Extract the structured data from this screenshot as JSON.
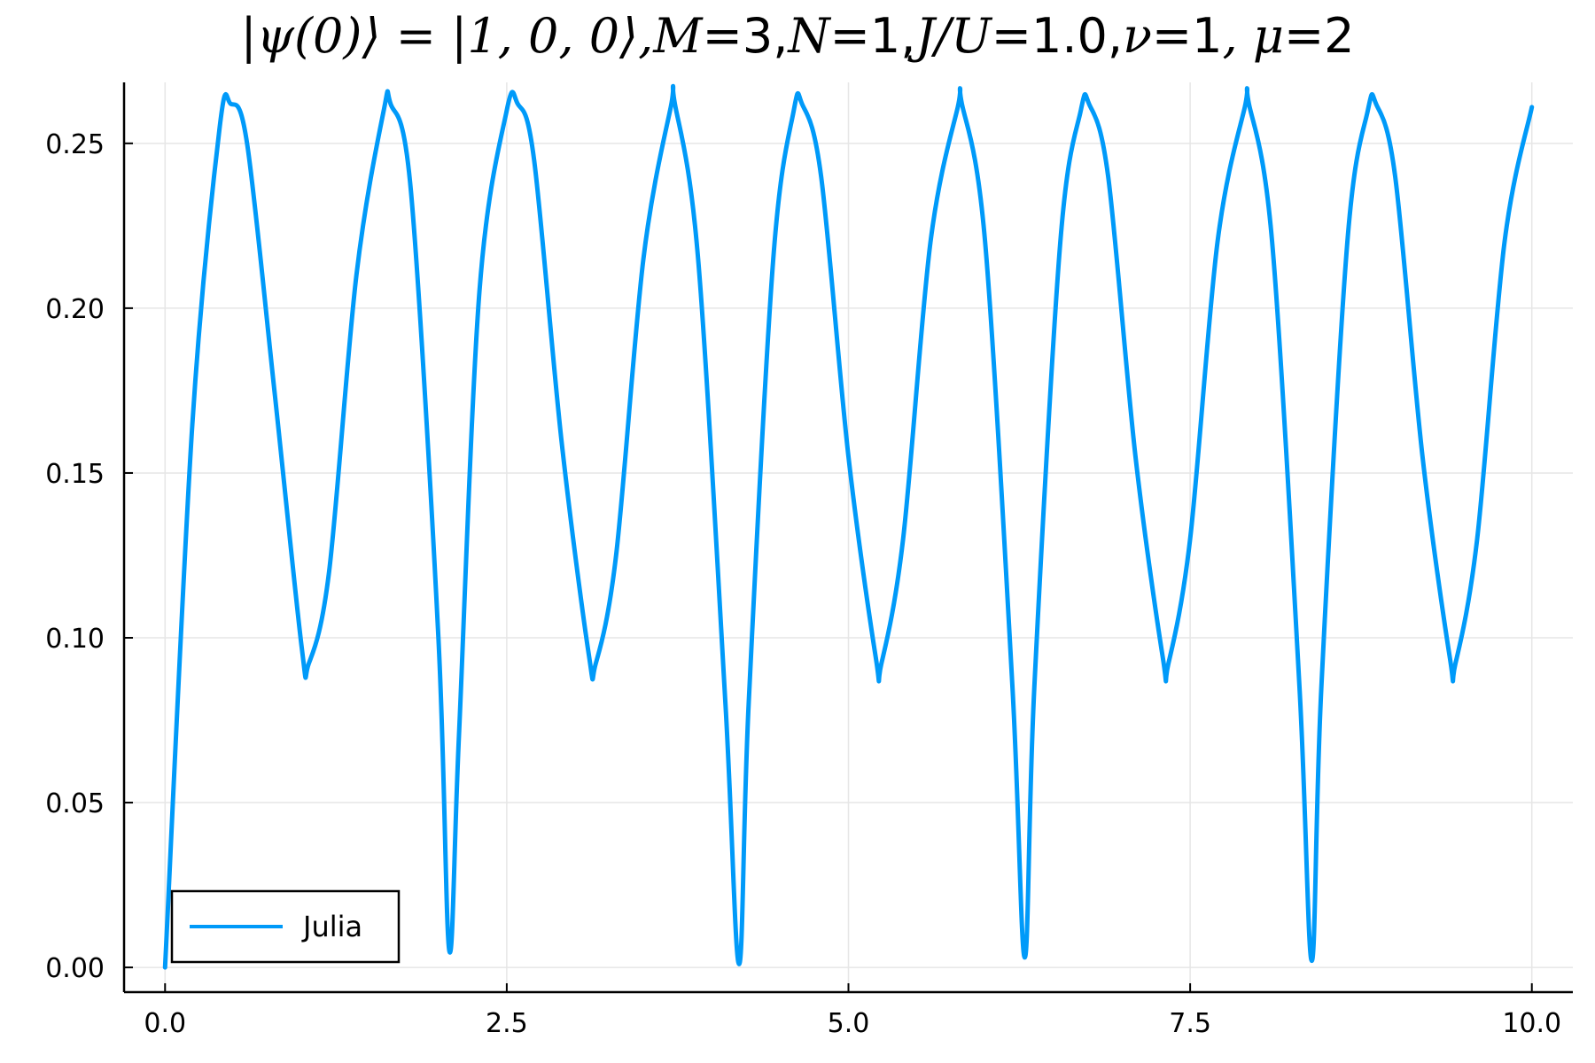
{
  "chart_data": {
    "type": "line",
    "title_parts": [
      {
        "text": "|ψ(0)⟩ = |1, 0, 0⟩, ",
        "style": "sym"
      },
      {
        "text": "M",
        "style": "sym"
      },
      {
        "text": "=3, ",
        "style": "plain"
      },
      {
        "text": "N",
        "style": "sym"
      },
      {
        "text": "=1, ",
        "style": "plain"
      },
      {
        "text": "J/U",
        "style": "sym"
      },
      {
        "text": "=1.0, ",
        "style": "plain"
      },
      {
        "text": "ν",
        "style": "sym"
      },
      {
        "text": "=1",
        "style": "plain"
      },
      {
        "text": ", μ",
        "style": "sym"
      },
      {
        "text": "=2",
        "style": "plain"
      }
    ],
    "xlabel": "",
    "ylabel": "",
    "xlim": [
      -0.3,
      10.3
    ],
    "ylim": [
      -0.0075,
      0.2685
    ],
    "x_ticks": [
      0.0,
      2.5,
      5.0,
      7.5,
      10.0
    ],
    "x_tick_labels": [
      "0.0",
      "2.5",
      "5.0",
      "7.5",
      "10.0"
    ],
    "y_ticks": [
      0.0,
      0.05,
      0.1,
      0.15,
      0.2,
      0.25
    ],
    "y_tick_labels": [
      "0.00",
      "0.05",
      "0.10",
      "0.15",
      "0.20",
      "0.25"
    ],
    "grid": true,
    "legend_position": "bottom-left",
    "series": [
      {
        "name": "Julia",
        "color": "#009AF9",
        "x": [
          0.0,
          0.2,
          0.4,
          0.48,
          0.6,
          0.8,
          1.0,
          1.05,
          1.2,
          1.4,
          1.6,
          1.65,
          1.8,
          2.0,
          2.08,
          2.15,
          2.3,
          2.5,
          2.58,
          2.7,
          2.9,
          3.1,
          3.15,
          3.3,
          3.5,
          3.7,
          3.73,
          3.9,
          4.1,
          4.2,
          4.27,
          4.45,
          4.6,
          4.66,
          4.8,
          5.0,
          5.2,
          5.24,
          5.4,
          5.6,
          5.8,
          5.83,
          6.0,
          6.2,
          6.29,
          6.36,
          6.55,
          6.7,
          6.76,
          6.9,
          7.1,
          7.3,
          7.34,
          7.5,
          7.7,
          7.9,
          7.93,
          8.1,
          8.3,
          8.39,
          8.46,
          8.65,
          8.8,
          8.86,
          9.0,
          9.2,
          9.4,
          9.44,
          9.6,
          9.8,
          10.0
        ],
        "y": [
          0.0,
          0.165,
          0.255,
          0.262,
          0.25,
          0.175,
          0.097,
          0.092,
          0.12,
          0.21,
          0.26,
          0.262,
          0.235,
          0.1,
          0.005,
          0.07,
          0.205,
          0.26,
          0.262,
          0.245,
          0.16,
          0.095,
          0.092,
          0.125,
          0.215,
          0.261,
          0.262,
          0.215,
          0.08,
          0.001,
          0.08,
          0.215,
          0.26,
          0.262,
          0.24,
          0.155,
          0.094,
          0.092,
          0.13,
          0.22,
          0.261,
          0.262,
          0.22,
          0.085,
          0.003,
          0.085,
          0.22,
          0.26,
          0.262,
          0.24,
          0.155,
          0.094,
          0.092,
          0.13,
          0.22,
          0.261,
          0.262,
          0.22,
          0.085,
          0.002,
          0.085,
          0.22,
          0.26,
          0.262,
          0.24,
          0.155,
          0.094,
          0.092,
          0.13,
          0.22,
          0.261
        ]
      }
    ]
  }
}
